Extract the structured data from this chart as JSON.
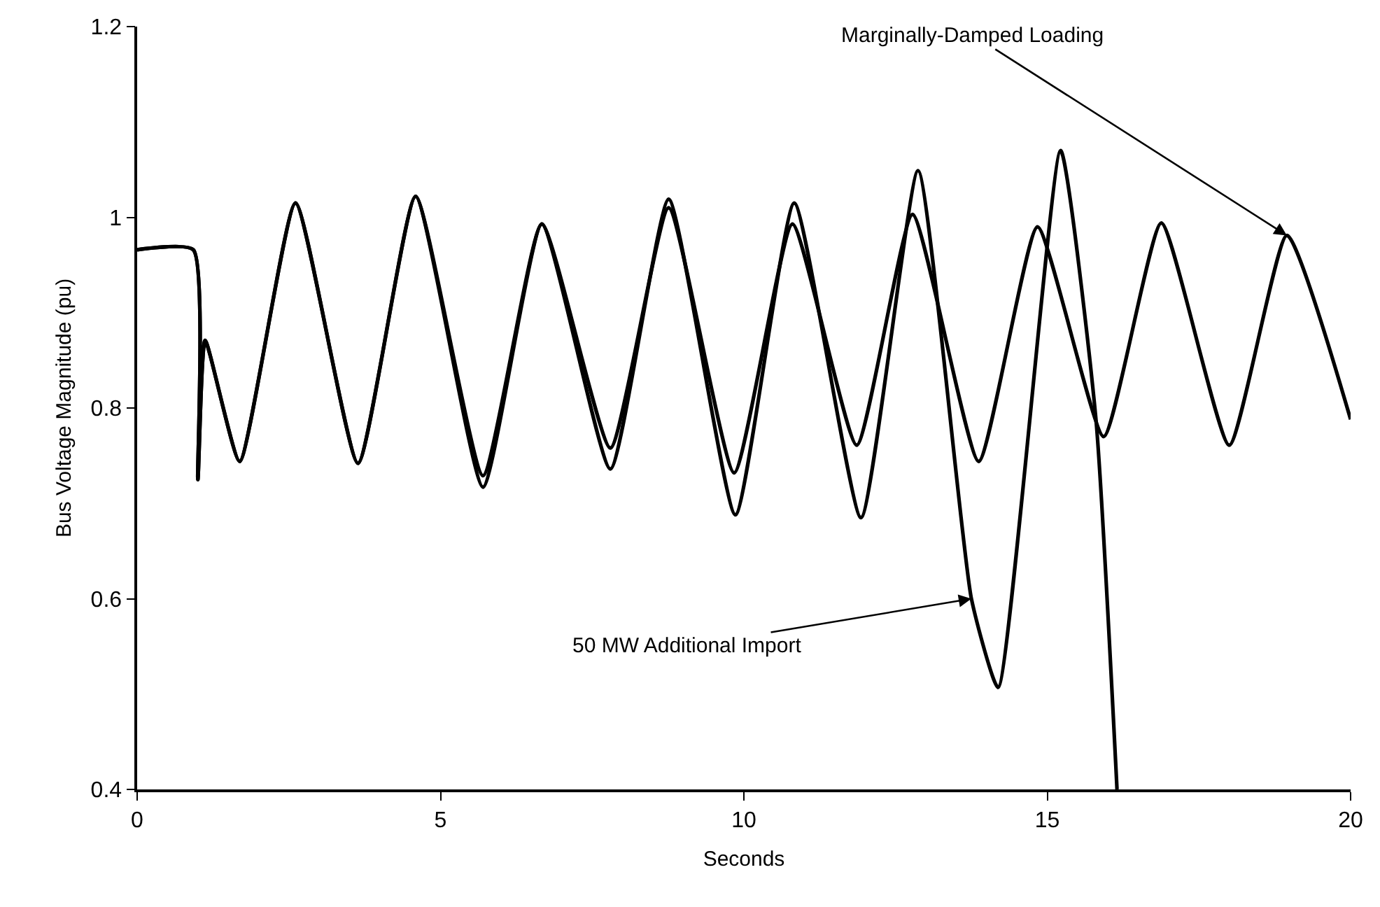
{
  "chart_data": {
    "type": "line",
    "xlabel": "Seconds",
    "ylabel": "Bus Voltage Magnitude (pu)",
    "xlim": [
      0,
      20
    ],
    "xticks": [
      0,
      5,
      10,
      15,
      20
    ],
    "ylim": [
      0.4,
      1.2
    ],
    "yticks": [
      0.4,
      0.6,
      0.8,
      1,
      1.2
    ],
    "series": [
      {
        "color": "#000000",
        "x": [
          0,
          0.925,
          1.0,
          1.12,
          1.69,
          2.61,
          3.64,
          4.59,
          5.7,
          6.67,
          7.8,
          8.76,
          9.84,
          10.8,
          11.86,
          12.78,
          13.87,
          14.84,
          15.93,
          16.88,
          18.0,
          18.95,
          20.0
        ],
        "values": [
          0.966,
          0.966,
          0.725,
          0.871,
          0.744,
          1.015,
          0.742,
          1.022,
          0.729,
          0.993,
          0.758,
          1.01,
          0.732,
          0.993,
          0.761,
          1.003,
          0.744,
          0.99,
          0.77,
          0.994,
          0.761,
          0.981,
          0.788
        ]
      },
      {
        "color": "#000000",
        "x": [
          0,
          0.925,
          1.0,
          1.12,
          1.69,
          2.61,
          3.64,
          4.59,
          5.7,
          6.67,
          7.8,
          8.76,
          9.86,
          10.83,
          11.93,
          12.87,
          13.75,
          14.19,
          15.22,
          15.8,
          16.15
        ],
        "values": [
          0.966,
          0.966,
          0.725,
          0.871,
          0.744,
          1.015,
          0.742,
          1.022,
          0.717,
          0.993,
          0.736,
          1.019,
          0.688,
          1.015,
          0.685,
          1.049,
          0.6,
          0.507,
          1.07,
          0.79,
          0.4
        ]
      }
    ],
    "annotations": [
      {
        "text": "Marginally-Damped Loading",
        "x": 18.95,
        "y": 0.981
      },
      {
        "text": "50 MW Additional Import",
        "x": 13.75,
        "y": 0.6
      }
    ]
  }
}
